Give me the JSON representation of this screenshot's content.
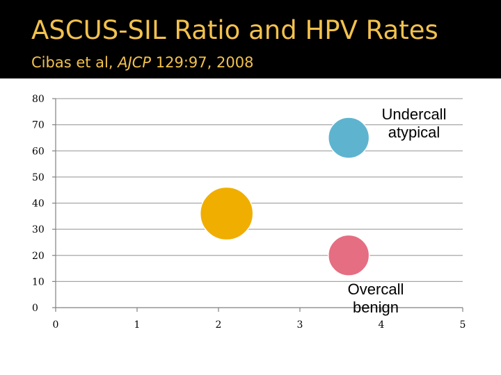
{
  "slide": {
    "title": "ASCUS-SIL Ratio and HPV Rates",
    "subtitle_authors": "Cibas et al, ",
    "subtitle_journal": "AJCP",
    "subtitle_ref": " 129:97, 2008",
    "header_color": "#000000",
    "title_color": "#f2c14e"
  },
  "chart_data": {
    "type": "scatter",
    "title": "",
    "xlabel": "",
    "ylabel": "",
    "xlim": [
      0,
      5
    ],
    "ylim": [
      0,
      80
    ],
    "xticks": [
      0,
      1,
      2,
      3,
      4,
      5
    ],
    "yticks": [
      0,
      10,
      20,
      30,
      40,
      50,
      60,
      70,
      80
    ],
    "grid": true,
    "points": [
      {
        "x": 2.1,
        "y": 36,
        "size": 1.0,
        "color": "#f0ae00"
      },
      {
        "x": 3.6,
        "y": 65,
        "size": 0.6,
        "color": "#5eb4cf"
      },
      {
        "x": 3.6,
        "y": 20,
        "size": 0.6,
        "color": "#e56e82"
      }
    ],
    "annotations": [
      {
        "lines": [
          "Undercall",
          "atypical"
        ]
      },
      {
        "lines": [
          "Overcall",
          "benign"
        ]
      }
    ]
  }
}
